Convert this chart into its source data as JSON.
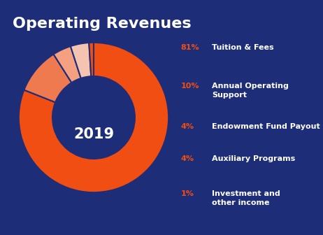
{
  "title": "Operating Revenues",
  "year": "2019",
  "background_color": "#1e2d78",
  "slices": [
    81,
    10,
    4,
    4,
    1
  ],
  "labels": [
    "Tuition & Fees",
    "Annual Operating\nSupport",
    "Endowment Fund Payout",
    "Auxiliary Programs",
    "Investment and\nother income"
  ],
  "percentages": [
    "81%",
    "10%",
    "4%",
    "4%",
    "1%"
  ],
  "colors": [
    "#f04e12",
    "#f07a50",
    "#f5a080",
    "#f5c4b0",
    "#f04e12"
  ],
  "legend_label_color": "#f04e12",
  "legend_text_color": "#ffffff",
  "title_color": "#ffffff",
  "year_color": "#ffffff",
  "wedge_edge_color": "#1e2d78",
  "wedge_linewidth": 1.5,
  "donut_width": 0.45,
  "startangle": 90,
  "title_fontsize": 16,
  "title_fontweight": "bold",
  "legend_pct_fontsize": 8,
  "legend_label_fontsize": 8,
  "year_fontsize": 15,
  "figsize": [
    4.62,
    3.36
  ],
  "dpi": 100
}
